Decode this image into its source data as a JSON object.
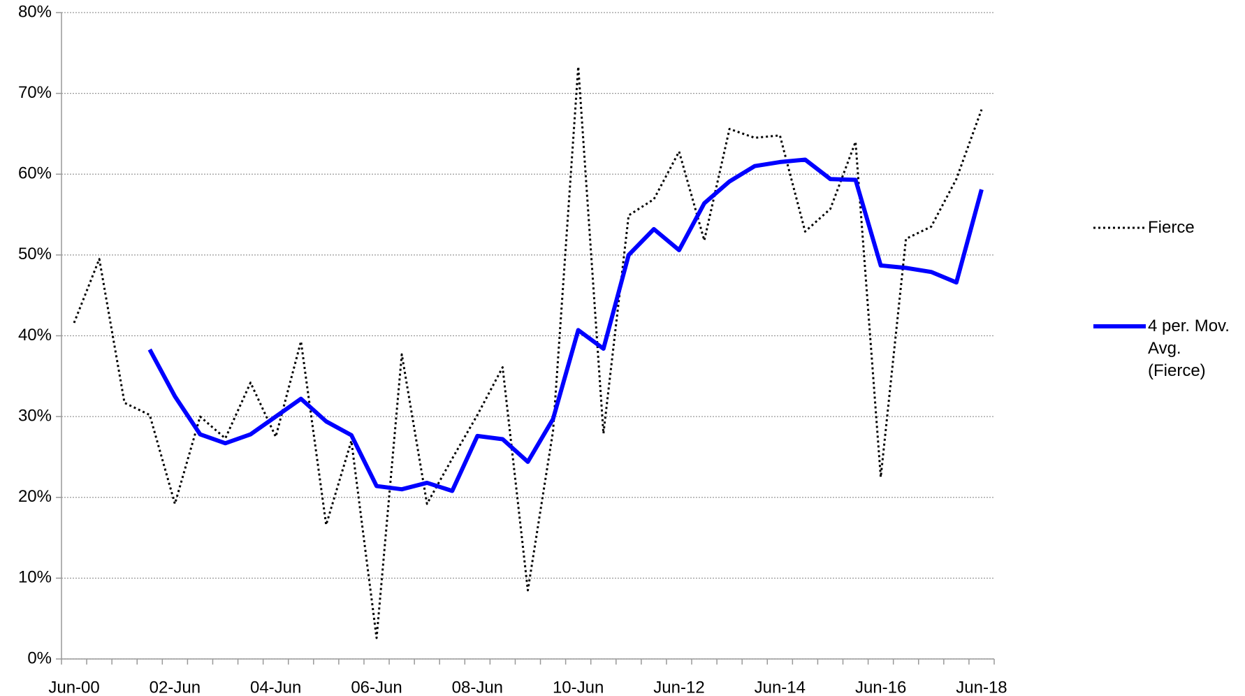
{
  "chart_data": {
    "type": "line",
    "categories": [
      "Jun-00",
      null,
      null,
      null,
      "02-Jun",
      null,
      null,
      null,
      "04-Jun",
      null,
      null,
      null,
      "06-Jun",
      null,
      null,
      null,
      "08-Jun",
      null,
      null,
      null,
      "10-Jun",
      null,
      null,
      null,
      "Jun-12",
      null,
      null,
      null,
      "Jun-14",
      null,
      null,
      null,
      "Jun-16",
      null,
      null,
      null,
      "Jun-18"
    ],
    "series": [
      {
        "name": "Fierce",
        "color": "#000000",
        "style": "dotted",
        "values": [
          41.6,
          49.5,
          31.7,
          30.2,
          19.2,
          30.0,
          27.3,
          34.2,
          27.5,
          39.3,
          16.6,
          27.0,
          2.6,
          37.7,
          19.2,
          24.8,
          30.2,
          36.1,
          8.5,
          28.2,
          73.3,
          27.9,
          54.9,
          56.9,
          62.8,
          51.8,
          65.6,
          64.5,
          64.8,
          52.9,
          55.7,
          64.0,
          22.5,
          52.0,
          53.5,
          59.4,
          68.0
        ]
      },
      {
        "name": "4 per. Mov. Avg. (Fierce)",
        "color": "#0000ff",
        "style": "solid",
        "values": [
          null,
          null,
          null,
          38.3,
          32.5,
          27.8,
          26.7,
          27.8,
          30.0,
          32.2,
          29.4,
          27.7,
          21.4,
          21.0,
          21.8,
          20.8,
          27.6,
          27.2,
          24.4,
          29.7,
          40.7,
          38.4,
          50.0,
          53.2,
          50.6,
          56.4,
          59.1,
          61.0,
          61.5,
          61.8,
          59.4,
          59.3,
          48.7,
          48.4,
          47.9,
          46.6,
          58.1
        ]
      }
    ],
    "ylim": [
      0,
      80
    ],
    "yticks": [
      {
        "value": 0,
        "label": "0%"
      },
      {
        "value": 10,
        "label": "10%"
      },
      {
        "value": 20,
        "label": "20%"
      },
      {
        "value": 30,
        "label": "30%"
      },
      {
        "value": 40,
        "label": "40%"
      },
      {
        "value": 50,
        "label": "50%"
      },
      {
        "value": 60,
        "label": "60%"
      },
      {
        "value": 70,
        "label": "70%"
      },
      {
        "value": 80,
        "label": "80%"
      }
    ],
    "grid": true,
    "legend": "right"
  }
}
